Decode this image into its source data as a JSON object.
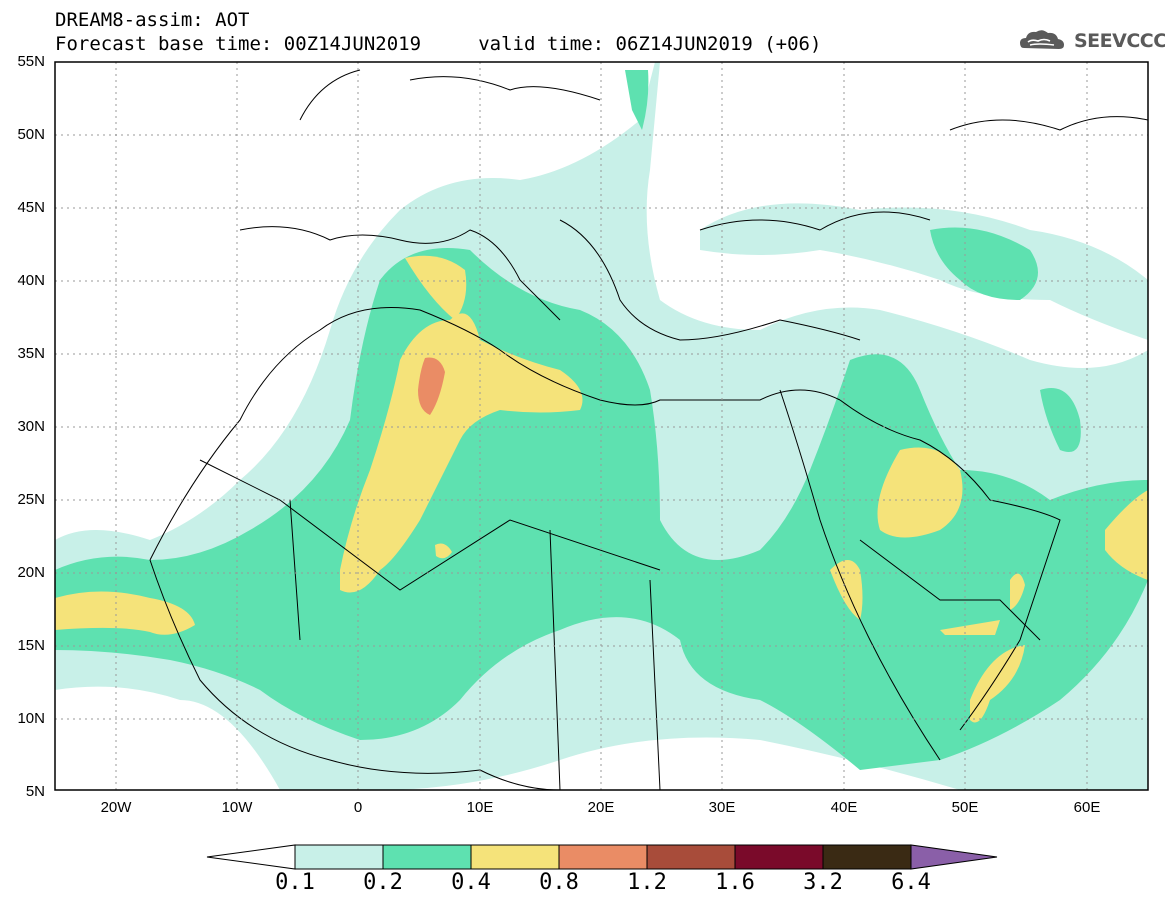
{
  "title": {
    "line1": "DREAM8-assim: AOT",
    "line2": "Forecast base time: 00Z14JUN2019     valid time: 06Z14JUN2019 (+06)"
  },
  "logo": {
    "text": "SEEVCCC",
    "icon": "cloud-icon"
  },
  "map": {
    "lat_labels": [
      "55N",
      "50N",
      "45N",
      "40N",
      "35N",
      "30N",
      "25N",
      "20N",
      "15N",
      "10N",
      "5N"
    ],
    "lon_labels": [
      "20W",
      "10W",
      "0",
      "10E",
      "20E",
      "30E",
      "40E",
      "50E",
      "60E"
    ]
  },
  "colorbar": {
    "labels": [
      "0.1",
      "0.2",
      "0.4",
      "0.8",
      "1.2",
      "1.6",
      "3.2",
      "6.4"
    ],
    "colors": [
      "#c8f0e8",
      "#5ee1b0",
      "#f5e37a",
      "#ea8c65",
      "#a84c3a",
      "#7a0a2a",
      "#3a2a14",
      "#8a5fa8"
    ]
  }
}
